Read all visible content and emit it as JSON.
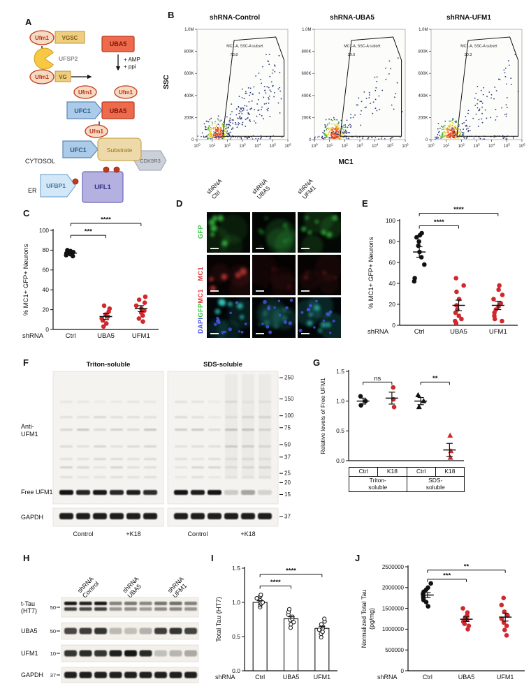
{
  "panelA": {
    "label": "A",
    "texts": {
      "ufm1": "Ufm1",
      "vgsc": "VGSC",
      "ufsp2": "UFSP2",
      "uba5": "UBA5",
      "amp": "+ AMP",
      "ppi": "+ ppi",
      "vg": "VG",
      "ufc1": "UFC1",
      "substrate": "Substrate",
      "cdk5r3": "CDK5R3",
      "cytosol": "CYTOSOL",
      "er": "ER",
      "ufbp1": "UFBP1",
      "ufl1": "UFL1"
    },
    "colors": {
      "ufm1_fill": "#f6dbc2",
      "ufm1_stroke": "#c23a1d",
      "ufm1_text": "#b5301a",
      "tan_fill": "#eecd7f",
      "tan_stroke": "#bd9434",
      "tan_text": "#7c5c12",
      "uba5_fill": "#ee6a4d",
      "uba5_stroke": "#bb3a1f",
      "uba5_text": "#7c1505",
      "ufc1_fill": "#abcbe8",
      "ufc1_stroke": "#5b89b8",
      "ufc1_text": "#2a5a8c",
      "pacman_fill": "#f6c844",
      "pacman_stroke": "#cf9c17",
      "substrate_fill": "#edd9a9",
      "substrate_stroke": "#c7a852",
      "substrate_text": "#96761e",
      "cdk_fill": "#ccd0d9",
      "cdk_stroke": "#99a0ac",
      "cdk_text": "#5a6068",
      "ufbp1_fill": "#d2e7f8",
      "ufbp1_stroke": "#7cabd0",
      "ufbp1_text": "#43749e",
      "ufl1_fill": "#b4b1e1",
      "ufl1_stroke": "#6b67ba",
      "ufl1_text": "#322e84",
      "gray_text": "#8b8b8b"
    }
  },
  "panelB": {
    "label": "B",
    "ylabel": "SSC",
    "xlabel": "MC1",
    "gate_label": "MC1-A, SSC-A subset",
    "yticks": [
      "1.0M",
      "800K",
      "600K",
      "400K",
      "200K",
      "0"
    ],
    "xtick_base": "10",
    "xtick_exponents": [
      "0",
      "1",
      "2",
      "3",
      "4",
      "5",
      "6"
    ],
    "plots": [
      {
        "title": "shRNA-Control",
        "gate_value": "73.8",
        "seed": 11,
        "n_spread": 170
      },
      {
        "title": "shRNA-UBA5",
        "gate_value": "20.6",
        "seed": 22,
        "n_spread": 60
      },
      {
        "title": "shRNA-UFM1",
        "gate_value": "30.3",
        "seed": 33,
        "n_spread": 85
      }
    ]
  },
  "panelC": {
    "label": "C",
    "ylabel_lines": [
      "% MC1+ GFP+ Neurons"
    ],
    "x_prefix": "shRNA",
    "ylim": [
      0,
      100
    ],
    "yticks": [
      0,
      20,
      40,
      60,
      80,
      100
    ],
    "groups": [
      {
        "label": "Ctrl",
        "color": "#111111",
        "marker": "circle",
        "points": [
          74,
          75,
          76,
          77,
          78,
          78,
          79,
          80
        ],
        "mean": 77,
        "sem": 1
      },
      {
        "label": "UBA5",
        "color": "#d0282c",
        "marker": "circle",
        "points": [
          3,
          6,
          9,
          11,
          13,
          15,
          18,
          21,
          24
        ],
        "mean": 13,
        "sem": 3
      },
      {
        "label": "UFM1",
        "color": "#d0282c",
        "marker": "circle",
        "points": [
          8,
          11,
          14,
          17,
          19,
          21,
          24,
          27,
          30,
          33
        ],
        "mean": 21,
        "sem": 3
      }
    ],
    "sig": [
      {
        "a": 0,
        "b": 1,
        "y": 95,
        "label": "***"
      },
      {
        "a": 0,
        "b": 2,
        "y": 107,
        "label": "****"
      }
    ]
  },
  "panelD": {
    "label": "D",
    "col_headers": [
      [
        "shRNA",
        "Ctrl"
      ],
      [
        "shRNA",
        "UBA5"
      ],
      [
        "shRNA",
        "UFM1"
      ]
    ],
    "row_labels": {
      "gfp": {
        "text": "GFP",
        "color": "#2fbf3a"
      },
      "mc1": {
        "text": "MC1",
        "color": "#e03535"
      },
      "merge": [
        {
          "text": "DAPI",
          "color": "#4252e0"
        },
        {
          "text": "GFP",
          "color": "#2fbf3a"
        },
        {
          "text": "MC1",
          "color": "#e03535"
        }
      ]
    },
    "cells": [
      {
        "seed": 101,
        "bg": "#040804",
        "color": "#3fd04a",
        "n": 6,
        "r0": 3,
        "r1": 6,
        "op": 0.9,
        "haze": 0.1,
        "nuclei": 0,
        "nColor": "#4252e0"
      },
      {
        "seed": 102,
        "bg": "#030603",
        "color": "#2f9a3a",
        "n": 9,
        "r0": 2,
        "r1": 4,
        "op": 0.5,
        "haze": 0.22,
        "nuclei": 0,
        "nColor": "#4252e0"
      },
      {
        "seed": 103,
        "bg": "#040804",
        "color": "#3fd04a",
        "n": 7,
        "r0": 2.5,
        "r1": 5,
        "op": 0.75,
        "haze": 0.15,
        "nuclei": 0,
        "nColor": "#4252e0"
      },
      {
        "seed": 104,
        "bg": "#070303",
        "color": "#e04040",
        "n": 5,
        "r0": 3,
        "r1": 6,
        "op": 0.8,
        "haze": 0.08,
        "nuclei": 0,
        "nColor": "#4252e0"
      },
      {
        "seed": 105,
        "bg": "#050202",
        "color": "#7a2020",
        "n": 4,
        "r0": 2,
        "r1": 4,
        "op": 0.3,
        "haze": 0.1,
        "nuclei": 0,
        "nColor": "#4252e0"
      },
      {
        "seed": 106,
        "bg": "#060303",
        "color": "#a03030",
        "n": 4,
        "r0": 2,
        "r1": 4,
        "op": 0.4,
        "haze": 0.1,
        "nuclei": 0,
        "nColor": "#4252e0"
      },
      {
        "seed": 107,
        "bg": "#020608",
        "color": "#38d8cc",
        "n": 6,
        "r0": 3,
        "r1": 6,
        "op": 0.9,
        "haze": 0.1,
        "nuclei": 13,
        "nColor": "#4252e0"
      },
      {
        "seed": 108,
        "bg": "#020506",
        "color": "#2a9a8e",
        "n": 8,
        "r0": 2,
        "r1": 4.5,
        "op": 0.5,
        "haze": 0.2,
        "nuclei": 13,
        "nColor": "#4252e0"
      },
      {
        "seed": 109,
        "bg": "#020608",
        "color": "#38d8cc",
        "n": 7,
        "r0": 2.5,
        "r1": 5,
        "op": 0.7,
        "haze": 0.15,
        "nuclei": 13,
        "nColor": "#4252e0"
      }
    ]
  },
  "panelE": {
    "label": "E",
    "ylabel_lines": [
      "% MC1+ GFP+ Neurons"
    ],
    "x_prefix": "shRNA",
    "ylim": [
      0,
      100
    ],
    "yticks": [
      0,
      20,
      40,
      60,
      80,
      100
    ],
    "groups": [
      {
        "label": "Ctrl",
        "color": "#111111",
        "marker": "circle",
        "points": [
          42,
          45,
          58,
          65,
          70,
          76,
          80,
          84,
          86,
          88
        ],
        "mean": 70,
        "sem": 5
      },
      {
        "label": "UBA5",
        "color": "#d0282c",
        "marker": "circle",
        "points": [
          2,
          4,
          6,
          9,
          12,
          15,
          19,
          25,
          32,
          38,
          45
        ],
        "mean": 19,
        "sem": 5
      },
      {
        "label": "UFM1",
        "color": "#d0282c",
        "marker": "circle",
        "points": [
          4,
          6,
          9,
          12,
          15,
          18,
          21,
          25,
          29,
          34,
          38
        ],
        "mean": 19,
        "sem": 4
      }
    ],
    "sig": [
      {
        "a": 0,
        "b": 1,
        "y": 95,
        "label": "****"
      },
      {
        "a": 0,
        "b": 2,
        "y": 107,
        "label": "****"
      }
    ]
  },
  "panelF": {
    "label": "F",
    "membranes": [
      {
        "title": "Triton-soluble",
        "freeufm1": [
          1,
          0.92,
          0.98,
          0.9,
          0.95,
          0.88
        ],
        "hsmear": false
      },
      {
        "title": "SDS-soluble",
        "freeufm1": [
          1,
          0.95,
          1,
          0.12,
          0.3,
          0.08
        ],
        "hsmear": true
      }
    ],
    "row_labels": {
      "anti1": "Anti-",
      "anti2": "UFM1",
      "free": "Free UFM1",
      "gapdh": "GAPDH"
    },
    "group_labels": [
      "Control",
      "+K18",
      "Control",
      "+K18"
    ],
    "mw": [
      "250",
      "150",
      "100",
      "75",
      "50",
      "37",
      "25",
      "20",
      "15"
    ],
    "mw_gapdh": "37"
  },
  "panelG": {
    "label": "G",
    "ylabel_lines": [
      "Relative levels of Free UFM1"
    ],
    "ylim": [
      0,
      1.5
    ],
    "yticks": [
      0,
      0.5,
      1,
      1.5
    ],
    "groups": [
      {
        "label": "Ctrl",
        "color": "#111111",
        "marker": "circle",
        "points": [
          0.93,
          1.0,
          1.08
        ],
        "mean": 1.0,
        "sem": 0.05
      },
      {
        "label": "K18",
        "color": "#d0282c",
        "marker": "circle",
        "points": [
          0.9,
          1.03,
          1.23
        ],
        "mean": 1.05,
        "sem": 0.1
      },
      {
        "label": "Ctrl",
        "color": "#111111",
        "marker": "triangle",
        "points": [
          0.9,
          1.0,
          1.1
        ],
        "mean": 1.0,
        "sem": 0.06
      },
      {
        "label": "K18",
        "color": "#d0282c",
        "marker": "triangle",
        "points": [
          0.05,
          0.16,
          0.42
        ],
        "mean": 0.18,
        "sem": 0.11
      }
    ],
    "sig": [
      {
        "a": 0,
        "b": 1,
        "y": 1.32,
        "label": "ns"
      },
      {
        "a": 2,
        "b": 3,
        "y": 1.32,
        "label": "**"
      }
    ],
    "table": {
      "row1": [
        "Ctrl",
        "K18",
        "Ctrl",
        "K18"
      ],
      "row2a": [
        "Triton-",
        "soluble"
      ],
      "row2b": [
        "SDS-",
        "soluble"
      ]
    }
  },
  "panelH": {
    "label": "H",
    "col_headers": [
      [
        "shRNA",
        "Control"
      ],
      [
        "shRNA",
        "UBA5"
      ],
      [
        "shRNA",
        "UFM1"
      ]
    ],
    "strips": [
      {
        "label_lines": [
          "t-Tau",
          "(HT7)"
        ],
        "mw": "50",
        "double": true,
        "bands": [
          1,
          0.95,
          1,
          0.45,
          0.5,
          0.42,
          0.52,
          0.55,
          0.46
        ]
      },
      {
        "label_lines": [
          "UBA5"
        ],
        "mw": "50",
        "double": false,
        "bands": [
          0.75,
          0.8,
          0.85,
          0.18,
          0.15,
          0.22,
          0.8,
          0.85,
          0.78
        ]
      },
      {
        "label_lines": [
          "UFM1"
        ],
        "mw": "10",
        "double": false,
        "bands": [
          0.85,
          0.9,
          0.85,
          0.95,
          1,
          0.9,
          0.15,
          0.2,
          0.26
        ]
      },
      {
        "label_lines": [
          "GAPDH"
        ],
        "mw": "37",
        "double": false,
        "bands": [
          0.95,
          0.95,
          0.95,
          0.95,
          0.95,
          0.95,
          0.95,
          0.95,
          0.95
        ]
      }
    ]
  },
  "panelI": {
    "label": "I",
    "ylabel_lines": [
      "Total Tau (HT7)"
    ],
    "x_prefix": "shRNA",
    "ylim": [
      0,
      1.5
    ],
    "yticks": [
      0,
      0.5,
      1,
      1.5
    ],
    "groups": [
      {
        "label": "Ctrl",
        "color": "#111111",
        "open": true,
        "marker": "circle",
        "bar": 1.0,
        "points": [
          0.93,
          0.96,
          0.98,
          1.0,
          1.0,
          1.03,
          1.06,
          1.09,
          1.11
        ],
        "mean": 1.0,
        "sem": 0.025
      },
      {
        "label": "UBA5",
        "color": "#111111",
        "open": true,
        "marker": "circle",
        "bar": 0.76,
        "points": [
          0.63,
          0.68,
          0.71,
          0.74,
          0.76,
          0.79,
          0.82,
          0.86,
          0.9
        ],
        "mean": 0.76,
        "sem": 0.03
      },
      {
        "label": "UFM1",
        "color": "#111111",
        "open": true,
        "marker": "circle",
        "bar": 0.62,
        "points": [
          0.49,
          0.54,
          0.57,
          0.6,
          0.62,
          0.65,
          0.68,
          0.72,
          0.76
        ],
        "mean": 0.62,
        "sem": 0.03
      }
    ],
    "sig": [
      {
        "a": 0,
        "b": 1,
        "y": 1.24,
        "label": "****"
      },
      {
        "a": 0,
        "b": 2,
        "y": 1.41,
        "label": "****"
      }
    ]
  },
  "panelJ": {
    "label": "J",
    "ylabel_lines": [
      "Normalized Total Tau",
      "(pg/mg)"
    ],
    "x_prefix": "shRNA",
    "ylim": [
      0,
      2500000
    ],
    "yticks": [
      0,
      500000,
      1000000,
      1500000,
      2000000,
      2500000
    ],
    "groups": [
      {
        "label": "Ctrl",
        "color": "#111111",
        "marker": "circle",
        "points": [
          1550000,
          1650000,
          1700000,
          1750000,
          1800000,
          1850000,
          1900000,
          1950000,
          2000000,
          2100000
        ],
        "mean": 1820000,
        "sem": 60000
      },
      {
        "label": "UBA5",
        "color": "#d0282c",
        "marker": "circle",
        "points": [
          1000000,
          1080000,
          1130000,
          1180000,
          1230000,
          1280000,
          1330000,
          1400000,
          1500000
        ],
        "mean": 1240000,
        "sem": 55000
      },
      {
        "label": "UFM1",
        "color": "#d0282c",
        "marker": "circle",
        "points": [
          850000,
          980000,
          1080000,
          1160000,
          1250000,
          1330000,
          1420000,
          1580000,
          1750000
        ],
        "mean": 1290000,
        "sem": 95000
      }
    ],
    "sig": [
      {
        "a": 0,
        "b": 1,
        "y": 2200000,
        "label": "***"
      },
      {
        "a": 0,
        "b": 2,
        "y": 2420000,
        "label": "**"
      }
    ]
  }
}
